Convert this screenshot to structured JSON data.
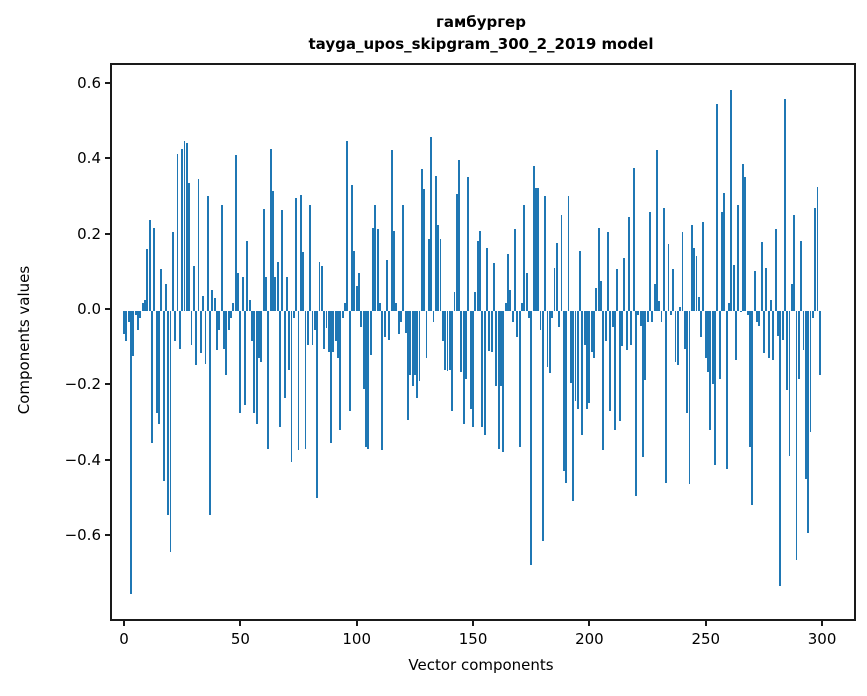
{
  "title": {
    "line1": "гамбургер",
    "line2": "tayga_upos_skipgram_300_2_2019 model"
  },
  "chart_data": {
    "type": "bar",
    "title": "гамбургер\ntayga_upos_skipgram_300_2_2019 model",
    "xlabel": "Vector components",
    "ylabel": "Components values",
    "bar_color": "#1f77b4",
    "grid": false,
    "legend": "none",
    "xlim": [
      -5.16,
      313.7
    ],
    "ylim": [
      -0.817,
      0.652
    ],
    "x_tick_values": [
      0,
      50,
      100,
      150,
      200,
      250,
      300
    ],
    "x_tick_labels": [
      "0",
      "50",
      "100",
      "150",
      "200",
      "250",
      "300"
    ],
    "y_tick_values": [
      0.6,
      0.4,
      0.2,
      0.0,
      -0.2,
      -0.4,
      -0.6
    ],
    "y_tick_labels": [
      "0.6",
      "0.4",
      "0.2",
      "0.0",
      "−0.2",
      "−0.4",
      "−0.6"
    ],
    "x": "vector component index 0..299",
    "values": [
      -0.06,
      -0.08,
      -0.03,
      -0.75,
      -0.12,
      -0.01,
      -0.05,
      -0.02,
      0.02,
      0.03,
      0.165,
      0.24,
      -0.35,
      0.22,
      -0.27,
      -0.3,
      0.11,
      -0.45,
      0.07,
      -0.54,
      -0.64,
      0.21,
      -0.08,
      0.417,
      -0.1,
      0.43,
      0.45,
      0.445,
      0.34,
      -0.09,
      0.118,
      -0.144,
      0.35,
      -0.112,
      0.04,
      -0.14,
      0.304,
      -0.542,
      0.055,
      0.033,
      -0.103,
      -0.05,
      0.281,
      -0.1,
      -0.17,
      -0.05,
      -0.02,
      0.02,
      0.414,
      0.1,
      -0.27,
      0.09,
      -0.25,
      0.186,
      0.03,
      -0.08,
      -0.27,
      -0.3,
      -0.125,
      -0.135,
      0.27,
      0.09,
      -0.366,
      0.43,
      0.317,
      0.09,
      0.13,
      -0.307,
      0.268,
      -0.23,
      0.09,
      -0.157,
      -0.4,
      -0.02,
      0.3,
      -0.37,
      0.308,
      0.155,
      -0.366,
      -0.09,
      0.28,
      -0.09,
      -0.05,
      -0.497,
      0.13,
      0.12,
      -0.1,
      -0.045,
      -0.11,
      -0.35,
      -0.11,
      -0.08,
      -0.126,
      -0.316,
      -0.02,
      0.02,
      0.45,
      -0.266,
      0.335,
      0.16,
      0.065,
      0.1,
      -0.044,
      -0.207,
      -0.36,
      -0.366,
      -0.117,
      0.22,
      0.28,
      0.218,
      0.02,
      -0.37,
      -0.07,
      0.136,
      -0.076,
      0.426,
      0.213,
      0.02,
      -0.06,
      -0.03,
      0.28,
      -0.058,
      -0.29,
      -0.17,
      -0.2,
      -0.17,
      -0.23,
      -0.185,
      0.376,
      0.322,
      -0.126,
      0.19,
      0.46,
      -0.03,
      0.358,
      0.227,
      0.19,
      -0.08,
      -0.157,
      -0.16,
      -0.157,
      -0.266,
      0.05,
      0.31,
      0.4,
      -0.162,
      -0.3,
      -0.18,
      0.354,
      -0.26,
      -0.307,
      0.05,
      0.186,
      0.213,
      -0.307,
      -0.33,
      0.168,
      -0.107,
      -0.11,
      0.127,
      -0.2,
      -0.365,
      -0.2,
      -0.375,
      0.02,
      0.15,
      0.055,
      -0.03,
      0.218,
      -0.07,
      -0.36,
      0.02,
      0.28,
      0.1,
      -0.02,
      -0.675,
      0.385,
      0.327,
      0.327,
      -0.05,
      -0.61,
      0.304,
      -0.148,
      -0.166,
      -0.02,
      0.114,
      0.18,
      -0.044,
      0.254,
      -0.424,
      -0.456,
      0.304,
      -0.19,
      -0.505,
      -0.24,
      -0.26,
      0.16,
      -0.33,
      -0.09,
      -0.26,
      -0.244,
      -0.108,
      -0.126,
      0.06,
      0.22,
      0.078,
      -0.37,
      -0.08,
      0.209,
      -0.266,
      -0.044,
      -0.316,
      0.11,
      -0.293,
      -0.094,
      0.14,
      -0.103,
      0.25,
      -0.09,
      0.379,
      -0.492,
      -0.01,
      -0.04,
      -0.388,
      -0.184,
      -0.03,
      0.263,
      -0.03,
      0.07,
      0.426,
      0.025,
      -0.03,
      0.272,
      -0.456,
      0.177,
      -0.01,
      0.11,
      -0.135,
      -0.144,
      0.01,
      0.209,
      -0.1,
      -0.27,
      -0.46,
      0.227,
      0.168,
      0.146,
      0.037,
      -0.07,
      0.236,
      -0.126,
      -0.162,
      -0.316,
      -0.194,
      -0.41,
      0.548,
      -0.18,
      0.263,
      0.313,
      -0.42,
      0.02,
      0.585,
      0.123,
      -0.13,
      0.281,
      0.0,
      0.39,
      0.354,
      -0.01,
      -0.36,
      -0.515,
      0.105,
      -0.03,
      -0.04,
      0.182,
      -0.112,
      0.114,
      -0.126,
      0.03,
      -0.13,
      0.218,
      -0.067,
      -0.73,
      -0.076,
      0.562,
      -0.21,
      -0.385,
      0.07,
      0.254,
      -0.66,
      -0.18,
      0.186,
      -0.103,
      -0.447,
      -0.59,
      -0.32,
      -0.02,
      0.272,
      0.328,
      -0.17
    ]
  }
}
